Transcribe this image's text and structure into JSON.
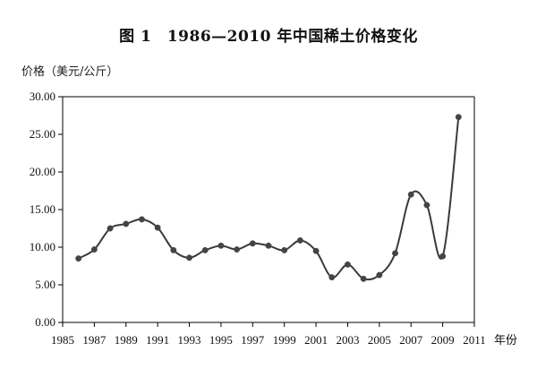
{
  "chart_data": {
    "type": "line",
    "title": "图 1　1986—2010 年中国稀土价格变化",
    "ylabel": "价格（美元/公斤）",
    "xlabel": "年份",
    "xlim": [
      1985,
      2011
    ],
    "ylim": [
      0,
      30
    ],
    "x_ticks": [
      "1985",
      "1987",
      "1989",
      "1991",
      "1993",
      "1995",
      "1997",
      "1999",
      "2001",
      "2003",
      "2005",
      "2007",
      "2009",
      "2011"
    ],
    "y_ticks": [
      "0.00",
      "5.00",
      "10.00",
      "15.00",
      "20.00",
      "25.00",
      "30.00"
    ],
    "grid": false,
    "legend": "none",
    "line_color": "#3a3a3a",
    "marker_color": "#444444",
    "series": [
      {
        "x": [
          1986,
          1987,
          1988,
          1989,
          1990,
          1991,
          1992,
          1993,
          1994,
          1995,
          1996,
          1997,
          1998,
          1999,
          2000,
          2001,
          2002,
          2003,
          2004,
          2005,
          2006,
          2007,
          2008,
          2009,
          2010
        ],
        "values": [
          8.5,
          9.7,
          12.5,
          13.1,
          13.7,
          12.6,
          9.6,
          8.6,
          9.6,
          10.2,
          9.7,
          10.5,
          10.2,
          9.6,
          10.9,
          9.5,
          6.0,
          7.7,
          5.8,
          6.3,
          9.2,
          17.0,
          15.6,
          8.8,
          27.3
        ]
      }
    ]
  }
}
